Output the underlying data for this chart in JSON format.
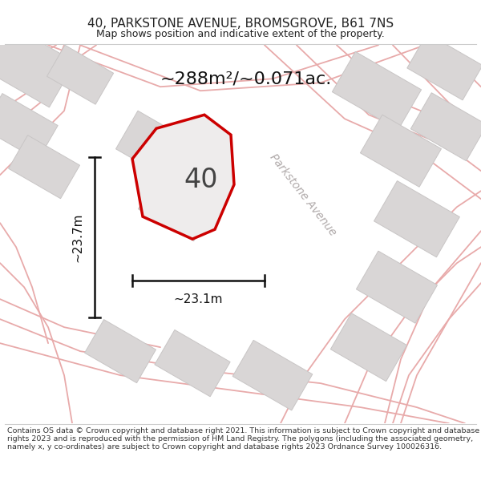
{
  "title": "40, PARKSTONE AVENUE, BROMSGROVE, B61 7NS",
  "subtitle": "Map shows position and indicative extent of the property.",
  "area_label": "~288m²/~0.071ac.",
  "plot_number": "40",
  "dim_width": "~23.1m",
  "dim_height": "~23.7m",
  "street_label": "Parkstone Avenue",
  "footer": "Contains OS data © Crown copyright and database right 2021. This information is subject to Crown copyright and database rights 2023 and is reproduced with the permission of HM Land Registry. The polygons (including the associated geometry, namely x, y co-ordinates) are subject to Crown copyright and database rights 2023 Ordnance Survey 100026316.",
  "map_bg": "#f2f0f0",
  "building_fill": "#d9d6d6",
  "building_edge": "#c8c5c5",
  "plot_outline_color": "#cc0000",
  "plot_fill": "#eeecec",
  "dim_line_color": "#111111",
  "title_color": "#222222",
  "footer_color": "#333333",
  "area_label_color": "#111111",
  "street_label_color": "#b0aaaa",
  "road_line_color": "#e8aaaa",
  "road_lw": 1.3
}
